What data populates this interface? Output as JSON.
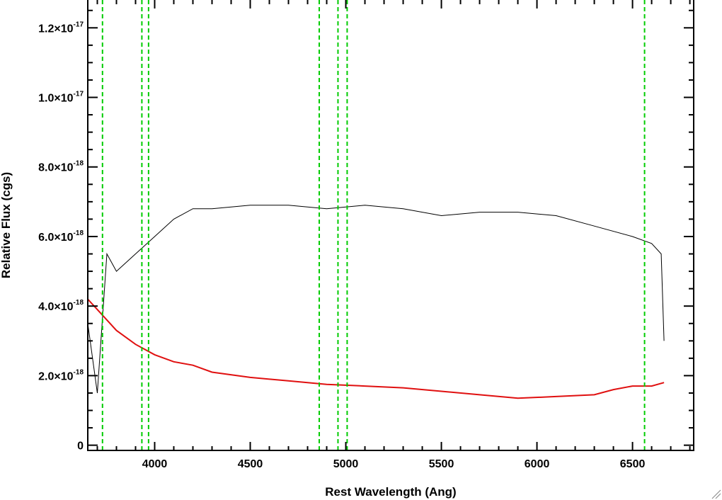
{
  "chart_data": {
    "type": "line",
    "title": "",
    "xlabel": "Rest Wavelength (Ang)",
    "ylabel": "Relative Flux (cgs)",
    "xlim": [
      3650,
      6820
    ],
    "ylim": [
      -1.5e-19,
      1.28e-17
    ],
    "x_ticks": [
      {
        "value": 4000,
        "label": "4000"
      },
      {
        "value": 4500,
        "label": "4500"
      },
      {
        "value": 5000,
        "label": "5000"
      },
      {
        "value": 5500,
        "label": "5500"
      },
      {
        "value": 6000,
        "label": "6000"
      },
      {
        "value": 6500,
        "label": "6500"
      }
    ],
    "y_ticks": [
      {
        "value": 0,
        "mantissa": "0",
        "exponent": ""
      },
      {
        "value": 2e-18,
        "mantissa": "2.0×10",
        "exponent": "-18"
      },
      {
        "value": 4e-18,
        "mantissa": "4.0×10",
        "exponent": "-18"
      },
      {
        "value": 6e-18,
        "mantissa": "6.0×10",
        "exponent": "-18"
      },
      {
        "value": 8e-18,
        "mantissa": "8.0×10",
        "exponent": "-18"
      },
      {
        "value": 1e-17,
        "mantissa": "1.0×10",
        "exponent": "-17"
      },
      {
        "value": 1.2e-17,
        "mantissa": "1.2×10",
        "exponent": "-17"
      }
    ],
    "series": [
      {
        "color": "#000000",
        "x": [
          3650,
          3700,
          3750,
          3800,
          3900,
          4000,
          4100,
          4200,
          4300,
          4500,
          4700,
          4900,
          5100,
          5300,
          5500,
          5700,
          5900,
          6100,
          6300,
          6500,
          6600,
          6650,
          6665
        ],
        "y": [
          3.5e-18,
          1.5e-18,
          5.5e-18,
          5e-18,
          5.5e-18,
          6e-18,
          6.5e-18,
          6.8e-18,
          6.8e-18,
          6.9e-18,
          6.9e-18,
          6.8e-18,
          6.9e-18,
          6.8e-18,
          6.6e-18,
          6.7e-18,
          6.7e-18,
          6.6e-18,
          6.3e-18,
          6e-18,
          5.8e-18,
          5.5e-18,
          3e-18
        ]
      },
      {
        "color": "#e01010",
        "x": [
          3650,
          3700,
          3750,
          3800,
          3900,
          4000,
          4100,
          4200,
          4300,
          4500,
          4700,
          4900,
          5100,
          5300,
          5500,
          5700,
          5900,
          6100,
          6300,
          6400,
          6500,
          6600,
          6665
        ],
        "y": [
          4.2e-18,
          3.9e-18,
          3.6e-18,
          3.3e-18,
          2.9e-18,
          2.6e-18,
          2.4e-18,
          2.3e-18,
          2.1e-18,
          1.95e-18,
          1.85e-18,
          1.75e-18,
          1.7e-18,
          1.65e-18,
          1.55e-18,
          1.45e-18,
          1.35e-18,
          1.4e-18,
          1.45e-18,
          1.6e-18,
          1.7e-18,
          1.7e-18,
          1.8e-18
        ]
      }
    ],
    "vertical_lines": [
      {
        "x": 3727,
        "color": "#00cc00",
        "style": "dashed"
      },
      {
        "x": 3933,
        "color": "#00cc00",
        "style": "dashed"
      },
      {
        "x": 3968,
        "color": "#00cc00",
        "style": "dashed"
      },
      {
        "x": 4861,
        "color": "#00cc00",
        "style": "dashed"
      },
      {
        "x": 4959,
        "color": "#00cc00",
        "style": "dashed"
      },
      {
        "x": 5007,
        "color": "#00cc00",
        "style": "dashed"
      },
      {
        "x": 6563,
        "color": "#00cc00",
        "style": "dashed"
      }
    ],
    "grid": false,
    "legend": "none"
  }
}
